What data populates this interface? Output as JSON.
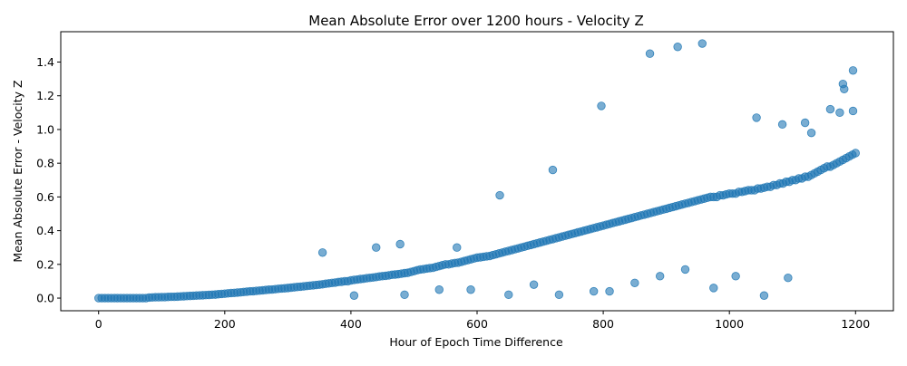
{
  "chart_data": {
    "type": "scatter",
    "title": "Mean Absolute Error over 1200 hours - Velocity Z",
    "xlabel": "Hour of Epoch Time Difference",
    "ylabel": "Mean Absolute Error - Velocity Z",
    "xlim": [
      -60,
      1260
    ],
    "ylim": [
      -0.075,
      1.58
    ],
    "xticks": [
      0,
      200,
      400,
      600,
      800,
      1000,
      1200
    ],
    "yticks": [
      0.0,
      0.2,
      0.4,
      0.6,
      0.8,
      1.0,
      1.2,
      1.4
    ],
    "grid": false,
    "legend": "none",
    "marker_color": "#1f77b4",
    "marker_alpha": 0.6,
    "series": [
      {
        "x": [
          0,
          10,
          20,
          30,
          40,
          50,
          60,
          70,
          80,
          90,
          100,
          110,
          120,
          130,
          140,
          150,
          160,
          170,
          180,
          190,
          200,
          210,
          220,
          230,
          240,
          250,
          260,
          270,
          280,
          290,
          300,
          310,
          320,
          330,
          340,
          350,
          360,
          370,
          380,
          390,
          400,
          410,
          420,
          430,
          440,
          450,
          460,
          470,
          480,
          490,
          500,
          510,
          520,
          530,
          540,
          550,
          560,
          570,
          580,
          590,
          600,
          610,
          620,
          630,
          640,
          650,
          660,
          670,
          680,
          690,
          700,
          710,
          720,
          730,
          740,
          750,
          760,
          770,
          780,
          790,
          800,
          810,
          820,
          830,
          840,
          850,
          860,
          870,
          880,
          890,
          900,
          910,
          920,
          930,
          940,
          950,
          960,
          970,
          980,
          990,
          1000,
          1010,
          1020,
          1030,
          1040,
          1050,
          1060,
          1070,
          1080,
          1090,
          1100,
          1110,
          1120,
          1130,
          1140,
          1150,
          1160,
          1170,
          1180,
          1190,
          1200,
          5,
          15,
          25,
          35,
          45,
          55,
          65,
          75,
          85,
          95,
          105,
          115,
          125,
          135,
          145,
          155,
          165,
          175,
          185,
          195,
          205,
          215,
          225,
          235,
          245,
          255,
          265,
          275,
          285,
          295,
          305,
          315,
          325,
          335,
          345,
          355,
          365,
          375,
          385,
          395,
          405,
          415,
          425,
          435,
          445,
          455,
          465,
          475,
          485,
          495,
          505,
          515,
          525,
          535,
          545,
          555,
          565,
          575,
          585,
          595,
          605,
          615,
          625,
          635,
          645,
          655,
          665,
          675,
          685,
          695,
          705,
          715,
          725,
          735,
          745,
          755,
          765,
          775,
          785,
          795,
          805,
          815,
          825,
          835,
          845,
          855,
          865,
          875,
          885,
          895,
          905,
          915,
          925,
          935,
          945,
          955,
          965,
          975,
          985,
          995,
          1005,
          1015,
          1025,
          1035,
          1045,
          1055,
          1065,
          1075,
          1085,
          1095,
          1105,
          1115,
          1125,
          1135,
          1145,
          1155,
          1165,
          1175,
          1185,
          1195,
          355,
          440,
          478,
          568,
          636,
          720,
          797,
          874,
          918,
          957,
          1043,
          1084,
          1120,
          1130,
          1160,
          1175,
          1180,
          1182,
          1196,
          1196,
          405,
          485,
          540,
          590,
          650,
          690,
          730,
          785,
          810,
          850,
          890,
          930,
          975,
          1010,
          1055,
          1093
        ],
        "y": [
          0,
          0,
          0,
          0,
          0,
          0,
          0,
          0,
          0.003,
          0.005,
          0.006,
          0.007,
          0.008,
          0.01,
          0.012,
          0.014,
          0.016,
          0.018,
          0.02,
          0.023,
          0.026,
          0.03,
          0.033,
          0.036,
          0.04,
          0.043,
          0.046,
          0.05,
          0.053,
          0.057,
          0.06,
          0.064,
          0.068,
          0.072,
          0.076,
          0.08,
          0.085,
          0.09,
          0.095,
          0.1,
          0.105,
          0.11,
          0.115,
          0.12,
          0.125,
          0.13,
          0.135,
          0.14,
          0.145,
          0.15,
          0.16,
          0.17,
          0.175,
          0.18,
          0.19,
          0.2,
          0.205,
          0.21,
          0.22,
          0.23,
          0.24,
          0.245,
          0.25,
          0.26,
          0.27,
          0.28,
          0.29,
          0.3,
          0.31,
          0.32,
          0.33,
          0.34,
          0.35,
          0.36,
          0.37,
          0.38,
          0.39,
          0.4,
          0.41,
          0.42,
          0.43,
          0.44,
          0.45,
          0.46,
          0.47,
          0.48,
          0.49,
          0.5,
          0.51,
          0.52,
          0.53,
          0.54,
          0.55,
          0.56,
          0.57,
          0.58,
          0.59,
          0.6,
          0.6,
          0.61,
          0.62,
          0.62,
          0.63,
          0.64,
          0.64,
          0.65,
          0.66,
          0.67,
          0.68,
          0.69,
          0.7,
          0.71,
          0.72,
          0.73,
          0.75,
          0.77,
          0.78,
          0.8,
          0.82,
          0.84,
          0.86,
          0,
          0,
          0,
          0,
          0,
          0,
          0,
          0,
          0.004,
          0.005,
          0.006,
          0.008,
          0.009,
          0.011,
          0.013,
          0.015,
          0.017,
          0.019,
          0.021,
          0.025,
          0.028,
          0.031,
          0.034,
          0.038,
          0.041,
          0.044,
          0.048,
          0.051,
          0.055,
          0.058,
          0.062,
          0.066,
          0.07,
          0.074,
          0.078,
          0.082,
          0.087,
          0.092,
          0.097,
          0.1,
          0.108,
          0.113,
          0.118,
          0.122,
          0.128,
          0.132,
          0.138,
          0.142,
          0.148,
          0.155,
          0.165,
          0.172,
          0.178,
          0.185,
          0.195,
          0.2,
          0.208,
          0.215,
          0.225,
          0.235,
          0.242,
          0.248,
          0.255,
          0.265,
          0.275,
          0.285,
          0.295,
          0.305,
          0.315,
          0.325,
          0.335,
          0.345,
          0.355,
          0.365,
          0.375,
          0.385,
          0.395,
          0.405,
          0.415,
          0.425,
          0.435,
          0.445,
          0.455,
          0.465,
          0.475,
          0.485,
          0.495,
          0.505,
          0.515,
          0.525,
          0.535,
          0.545,
          0.555,
          0.565,
          0.575,
          0.585,
          0.595,
          0.6,
          0.61,
          0.615,
          0.62,
          0.63,
          0.635,
          0.64,
          0.65,
          0.655,
          0.66,
          0.67,
          0.68,
          0.69,
          0.7,
          0.71,
          0.72,
          0.74,
          0.76,
          0.78,
          0.79,
          0.81,
          0.83,
          0.85,
          0.27,
          0.3,
          0.32,
          0.3,
          0.61,
          0.76,
          1.14,
          1.45,
          1.49,
          1.51,
          1.07,
          1.03,
          1.04,
          0.98,
          1.12,
          1.1,
          1.27,
          1.24,
          1.35,
          1.11,
          0.015,
          0.02,
          0.05,
          0.05,
          0.02,
          0.08,
          0.02,
          0.04,
          0.04,
          0.09,
          0.13,
          0.17,
          0.06,
          0.13,
          0.015,
          0.12
        ]
      }
    ]
  }
}
